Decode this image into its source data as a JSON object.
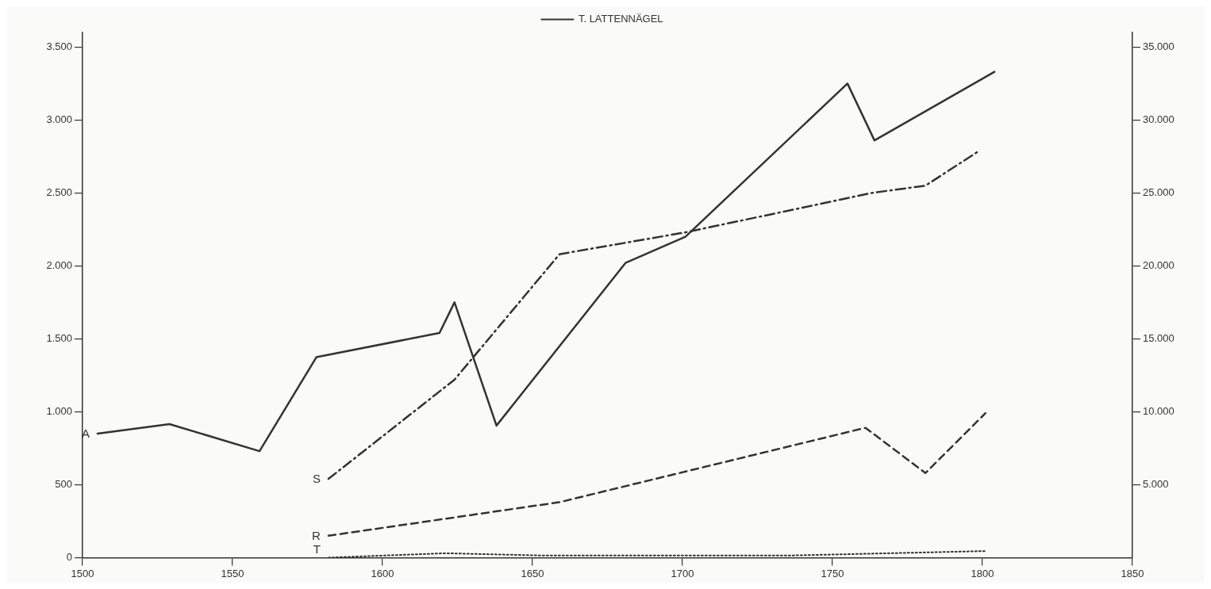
{
  "chart_data": {
    "type": "line",
    "legend": "top",
    "grid": false,
    "marker": "none",
    "xlim": [
      1500,
      1850
    ],
    "xticks": [
      1500,
      1550,
      1600,
      1650,
      1700,
      1750,
      1800,
      1850
    ],
    "ylim": [
      0,
      3600
    ],
    "yticks": [
      0,
      500,
      {
        "value": 1000,
        "label": "1.000"
      },
      {
        "value": 1500,
        "label": "1.500"
      },
      {
        "value": 2000,
        "label": "2.000"
      },
      {
        "value": 2500,
        "label": "2.500"
      },
      {
        "value": 3000,
        "label": "3.000"
      },
      {
        "value": 3500,
        "label": "3.500"
      }
    ],
    "y2lim": [
      0,
      36000
    ],
    "y2ticks": [
      {
        "value": 5000,
        "label": "5.000"
      },
      {
        "value": 10000,
        "label": "10.000"
      },
      {
        "value": 15000,
        "label": "15.000"
      },
      {
        "value": 20000,
        "label": "20.000"
      },
      {
        "value": 25000,
        "label": "25.000"
      },
      {
        "value": 30000,
        "label": "30.000"
      },
      {
        "value": 35000,
        "label": "35.000"
      }
    ],
    "series": [
      {
        "color": "#333333",
        "line_style": "solid",
        "x": [
          1505,
          1529,
          1559,
          1578,
          1619,
          1624,
          1638,
          1681,
          1701,
          1755,
          1764,
          1804
        ],
        "values": [
          850,
          915,
          730,
          1375,
          1540,
          1750,
          905,
          2020,
          2200,
          3250,
          2860,
          3330
        ]
      },
      {
        "color": "#333333",
        "line_style": "dashdot",
        "x": [
          1582,
          1624,
          1659,
          1701,
          1754,
          1763,
          1781,
          1799
        ],
        "values": [
          540,
          1220,
          2080,
          2230,
          2460,
          2500,
          2550,
          2790
        ]
      },
      {
        "color": "#333333",
        "line_style": "dashed",
        "x": [
          1582,
          1659,
          1761,
          1781,
          1801
        ],
        "values": [
          150,
          380,
          890,
          580,
          990
        ]
      },
      {
        "name": "T. LATTENNÄGEL",
        "color": "#333333",
        "line_style": "dotted",
        "x": [
          1582,
          1621,
          1652,
          1737,
          1801
        ],
        "values": [
          0,
          30,
          15,
          15,
          45
        ]
      }
    ],
    "annotations": [
      "A",
      "S",
      "R",
      "T"
    ]
  }
}
